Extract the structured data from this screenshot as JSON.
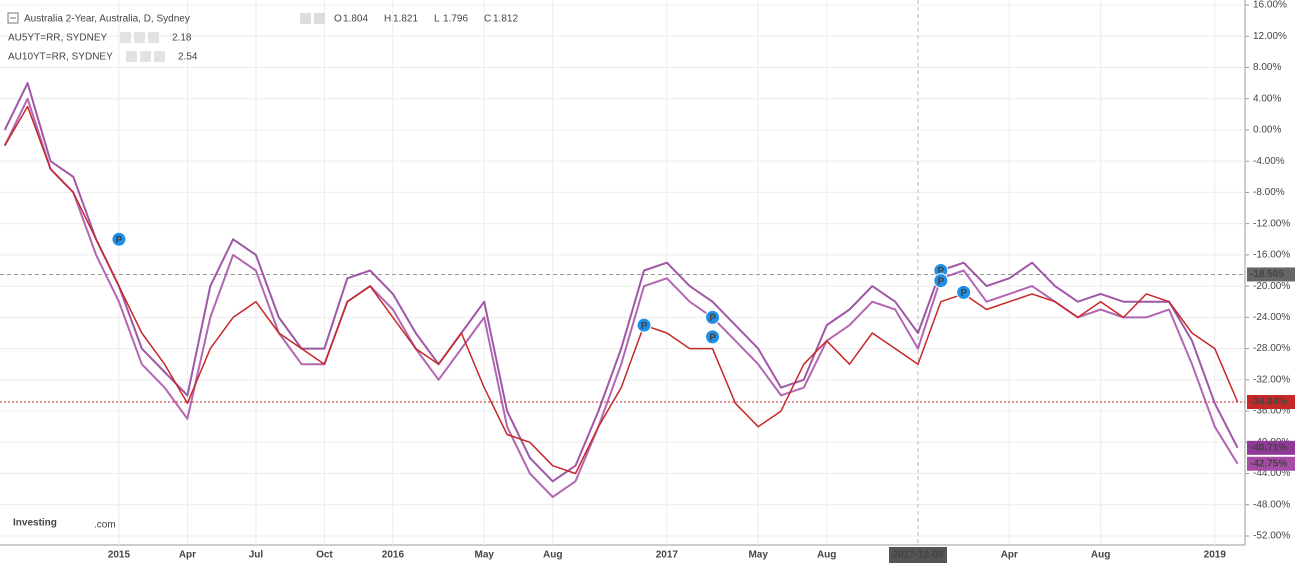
{
  "chart_data": {
    "type": "line",
    "title": "Australia 2-Year, Australia, D, Sydney",
    "ohlc": [
      {
        "label": "O",
        "value": 1.804
      },
      {
        "label": "H",
        "value": 1.821
      },
      {
        "label": "L",
        "value": 1.796
      },
      {
        "label": "C",
        "value": 1.812
      }
    ],
    "logo": {
      "brand": "Investing",
      "suffix": ".com"
    },
    "categories": [
      null,
      null,
      null,
      null,
      null,
      "2015",
      null,
      null,
      "Apr",
      null,
      null,
      "Jul",
      null,
      null,
      "Oct",
      null,
      null,
      "2016",
      null,
      null,
      null,
      "May",
      null,
      null,
      "Aug",
      null,
      null,
      null,
      null,
      "2017",
      null,
      null,
      null,
      "May",
      null,
      null,
      "Aug",
      null,
      null,
      null,
      "2017-12-08",
      null,
      null,
      null,
      "Apr",
      null,
      null,
      null,
      "Aug",
      null,
      null,
      null,
      null,
      "2019",
      null
    ],
    "series": [
      {
        "name": "Australia 2-Year",
        "color": "#c62828",
        "last_label": "-34.84%",
        "values": [
          -2,
          3,
          -5,
          -8,
          -14,
          -20,
          -26,
          -30,
          -35,
          -28,
          -24,
          -22,
          -26,
          -28,
          -30,
          -22,
          -20,
          -24,
          -28,
          -30,
          -26,
          -33,
          -39,
          -40,
          -43,
          -44,
          -38,
          -33,
          -25,
          -26,
          -28,
          -28,
          -35,
          -38,
          -36,
          -30,
          -27,
          -30,
          -26,
          -28,
          -30,
          -22,
          -21,
          -23,
          -22,
          -21,
          -22,
          -24,
          -22,
          -24,
          -21,
          -22,
          -26,
          -28,
          -34.84
        ]
      },
      {
        "name": "AU5YT=RR, SYDNEY",
        "legend_value": 2.18,
        "color": "#a64ca6",
        "last_label": "-42.75%",
        "values": [
          -2,
          4,
          -5,
          -8,
          -16,
          -22,
          -30,
          -33,
          -37,
          -24,
          -16,
          -18,
          -26,
          -30,
          -30,
          -22,
          -20,
          -23,
          -28,
          -32,
          -28,
          -24,
          -38,
          -44,
          -47,
          -45,
          -38,
          -30,
          -20,
          -19,
          -22,
          -24,
          -27,
          -30,
          -34,
          -33,
          -27,
          -25,
          -22,
          -23,
          -28,
          -19,
          -18,
          -22,
          -21,
          -20,
          -22,
          -24,
          -23,
          -24,
          -24,
          -23,
          -30,
          -38,
          -42.75
        ]
      },
      {
        "name": "AU10YT=RR, SYDNEY",
        "legend_value": 2.54,
        "color": "#8e3a96",
        "last_label": "-40.71%",
        "values": [
          0,
          6,
          -4,
          -6,
          -14,
          -20,
          -28,
          -31,
          -34,
          -20,
          -14,
          -16,
          -24,
          -28,
          -28,
          -19,
          -18,
          -21,
          -26,
          -30,
          -26,
          -22,
          -36,
          -42,
          -45,
          -43,
          -36,
          -28,
          -18,
          -17,
          -20,
          -22,
          -25,
          -28,
          -33,
          -32,
          -25,
          -23,
          -20,
          -22,
          -26,
          -18,
          -17,
          -20,
          -19,
          -17,
          -20,
          -22,
          -21,
          -22,
          -22,
          -22,
          -27,
          -35,
          -40.71
        ]
      }
    ],
    "crosshair": {
      "value": -18.505,
      "label": "-18.505"
    },
    "events": [
      {
        "label": "P",
        "index": 5,
        "value": -14
      },
      {
        "label": "P",
        "index": 28,
        "value": -25
      },
      {
        "label": "P",
        "index": 31,
        "value": -24
      },
      {
        "label": "P",
        "index": 31,
        "value": -26.5
      },
      {
        "label": "P",
        "index": 41,
        "value": -18
      },
      {
        "label": "P",
        "index": 41,
        "value": -19.3
      },
      {
        "label": "P",
        "index": 42,
        "value": -20.8
      }
    ],
    "ylim": [
      16,
      -52
    ],
    "yticks": [
      {
        "value": 16,
        "label": "16.00%"
      },
      {
        "value": 12,
        "label": "12.00%"
      },
      {
        "value": 8,
        "label": "8.00%"
      },
      {
        "value": 4,
        "label": "4.00%"
      },
      {
        "value": 0,
        "label": "0.00%"
      },
      {
        "value": -4,
        "label": "-4.00%"
      },
      {
        "value": -8,
        "label": "-8.00%"
      },
      {
        "value": -12,
        "label": "-12.00%"
      },
      {
        "value": -16,
        "label": "-16.00%"
      },
      {
        "value": -20,
        "label": "-20.00%"
      },
      {
        "value": -24,
        "label": "-24.00%"
      },
      {
        "value": -28,
        "label": "-28.00%"
      },
      {
        "value": -32,
        "label": "-32.00%"
      },
      {
        "value": -36,
        "label": "-36.00%"
      },
      {
        "value": -40,
        "label": "-40.00%"
      },
      {
        "value": -44,
        "label": "-44.00%"
      },
      {
        "value": -48,
        "label": "-48.00%"
      },
      {
        "value": -52,
        "label": "-52.00%"
      }
    ],
    "grid": true
  }
}
